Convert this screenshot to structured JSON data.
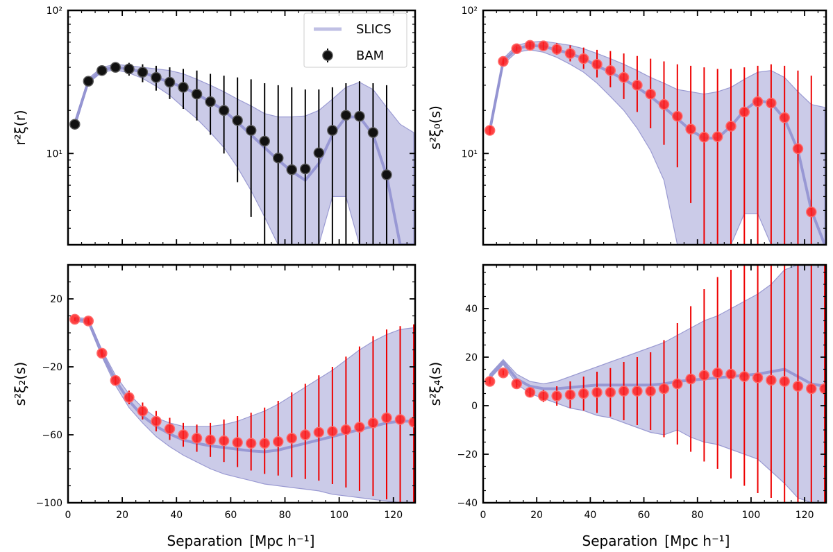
{
  "figure": {
    "xlabel_text": "Separation",
    "xlabel_unit": "[Mpc h⁻¹]"
  },
  "legend": {
    "slics": "SLICS",
    "bam": "BAM"
  },
  "colors": {
    "band": "#c5c5e6",
    "band_edge": "#9a9ad2",
    "median_line": "#8f8fd0",
    "bam_real": "#111111",
    "bam_red": "#ff1e1e",
    "err_red": "#ee0000",
    "err_black": "#000000"
  },
  "chart_data": [
    {
      "id": "real",
      "type": "scatter",
      "yscale": "log",
      "ylabel": "r²ξ(r)",
      "xlim": [
        0,
        128
      ],
      "ylim": [
        2.3,
        100
      ],
      "x_ticks": [
        0,
        20,
        40,
        60,
        80,
        100,
        120
      ],
      "y_ticks": [
        {
          "value": 10,
          "label": "10¹"
        },
        {
          "value": 100,
          "label": "10²"
        }
      ],
      "show_x_ticklabels": false,
      "point_style": "black",
      "x": [
        2.5,
        7.5,
        12.5,
        17.5,
        22.5,
        27.5,
        32.5,
        37.5,
        42.5,
        47.5,
        52.5,
        57.5,
        62.5,
        67.5,
        72.5,
        77.5,
        82.5,
        87.5,
        92.5,
        97.5,
        102.5,
        107.5,
        112.5,
        117.5
      ],
      "y": [
        16,
        32,
        38,
        40,
        39,
        37,
        34,
        31.5,
        29,
        26,
        23,
        20,
        17,
        14.5,
        12.2,
        9.3,
        7.7,
        7.8,
        10.1,
        14.5,
        18.5,
        18.2,
        14,
        7.1
      ],
      "err_low": [
        15,
        30,
        36,
        37,
        35,
        31.5,
        27.5,
        24,
        20.5,
        17,
        13.5,
        10,
        6.3,
        3.6,
        2.3,
        2.3,
        2.3,
        2.3,
        2.3,
        2.3,
        2.3,
        2.3,
        2.3,
        2.3
      ],
      "err_high": [
        17,
        34,
        40,
        43,
        43,
        42,
        41,
        40,
        39,
        38,
        36,
        35,
        34,
        33,
        31,
        30,
        29,
        28,
        28,
        29,
        31,
        32,
        31,
        30
      ],
      "band": {
        "x": [
          2.5,
          7.5,
          12.5,
          17.5,
          22.5,
          27.5,
          32.5,
          37.5,
          42.5,
          47.5,
          52.5,
          57.5,
          62.5,
          67.5,
          72.5,
          77.5,
          82.5,
          87.5,
          92.5,
          97.5,
          102.5,
          107.5,
          112.5,
          117.5,
          122.5,
          127.5
        ],
        "upper": [
          17,
          33.5,
          40,
          42,
          41,
          40,
          39,
          38,
          36,
          33,
          30,
          27,
          24,
          21.5,
          19,
          18,
          18,
          18.3,
          20,
          24,
          29,
          31.5,
          28,
          21,
          16,
          14
        ],
        "lower": [
          15,
          31,
          37,
          38.5,
          36.5,
          33.5,
          29.5,
          25.5,
          21,
          17.5,
          14,
          11,
          8,
          5.5,
          3.6,
          2.3,
          2.3,
          2.3,
          2.3,
          5,
          5,
          2.3,
          2.3,
          2.3,
          2.3,
          2.3
        ],
        "median": [
          16,
          32,
          38.5,
          40,
          39,
          37,
          34,
          31.5,
          29,
          26,
          23,
          20,
          16.5,
          13.5,
          11,
          9,
          7.5,
          6.5,
          8.5,
          13.5,
          18,
          18,
          13.5,
          7,
          2.3,
          2.3
        ]
      }
    },
    {
      "id": "monopole",
      "type": "scatter",
      "yscale": "log",
      "ylabel": "s²ξ₀(s)",
      "xlim": [
        0,
        128
      ],
      "ylim": [
        2.3,
        100
      ],
      "x_ticks": [
        0,
        20,
        40,
        60,
        80,
        100,
        120
      ],
      "y_ticks": [
        {
          "value": 10,
          "label": "10¹"
        },
        {
          "value": 100,
          "label": "10²"
        }
      ],
      "show_x_ticklabels": false,
      "point_style": "red",
      "x": [
        2.5,
        7.5,
        12.5,
        17.5,
        22.5,
        27.5,
        32.5,
        37.5,
        42.5,
        47.5,
        52.5,
        57.5,
        62.5,
        67.5,
        72.5,
        77.5,
        82.5,
        87.5,
        92.5,
        97.5,
        102.5,
        107.5,
        112.5,
        117.5,
        122.5
      ],
      "y": [
        14.5,
        44,
        54,
        57,
        56.5,
        53.5,
        50,
        46,
        42,
        38,
        34,
        30,
        26,
        22,
        18.2,
        14.8,
        13,
        13.1,
        15.5,
        19.5,
        23,
        22.5,
        17.8,
        10.8,
        3.9
      ],
      "err_low": [
        13.5,
        42,
        52,
        54,
        53,
        49,
        44,
        39,
        34,
        29,
        24,
        19.5,
        15,
        11.5,
        8,
        4.5,
        2.3,
        2.3,
        2.3,
        2.3,
        2.3,
        2.3,
        2.3,
        2.3,
        2.3
      ],
      "err_high": [
        15.5,
        46,
        56,
        60,
        60,
        59,
        57,
        55,
        53,
        52,
        50,
        48,
        46,
        44,
        42,
        41,
        40,
        39,
        39,
        40,
        41,
        42,
        41,
        38,
        35
      ],
      "band": {
        "x": [
          2.5,
          7.5,
          12.5,
          17.5,
          22.5,
          27.5,
          32.5,
          37.5,
          42.5,
          47.5,
          52.5,
          57.5,
          62.5,
          67.5,
          72.5,
          77.5,
          82.5,
          87.5,
          92.5,
          97.5,
          102.5,
          107.5,
          112.5,
          117.5,
          122.5,
          127.5
        ],
        "upper": [
          15.5,
          46,
          57,
          60,
          61,
          59,
          57,
          54,
          50,
          46,
          42,
          38,
          34,
          31,
          28,
          27,
          26,
          27,
          29,
          33,
          37,
          38,
          34,
          27,
          22,
          21
        ],
        "lower": [
          13.5,
          42,
          51,
          53,
          51,
          47,
          42,
          37,
          31,
          25,
          20,
          15,
          10.5,
          6.5,
          2.3,
          2.3,
          2.3,
          2.3,
          2.3,
          3.8,
          3.8,
          2.3,
          2.3,
          2.3,
          2.3,
          2.3
        ],
        "median": [
          14.5,
          44,
          54,
          57,
          56,
          53,
          50,
          46,
          41,
          37,
          33,
          29,
          25,
          21,
          17.5,
          14.5,
          12.8,
          12.8,
          15.5,
          20,
          23.5,
          22.5,
          17.5,
          10.5,
          4,
          2.3
        ]
      }
    },
    {
      "id": "quadrupole",
      "type": "scatter",
      "yscale": "linear",
      "ylabel": "s²ξ₂(s)",
      "xlim": [
        0,
        128
      ],
      "ylim": [
        -100,
        40
      ],
      "x_ticks": [
        0,
        20,
        40,
        60,
        80,
        100,
        120
      ],
      "y_ticks": [
        {
          "value": -100,
          "label": "−100"
        },
        {
          "value": -60,
          "label": "−60"
        },
        {
          "value": -20,
          "label": "−20"
        },
        {
          "value": 20,
          "label": "20"
        }
      ],
      "show_x_ticklabels": true,
      "xlabel": "Separation",
      "point_style": "red",
      "x": [
        2.5,
        7.5,
        12.5,
        17.5,
        22.5,
        27.5,
        32.5,
        37.5,
        42.5,
        47.5,
        52.5,
        57.5,
        62.5,
        67.5,
        72.5,
        77.5,
        82.5,
        87.5,
        92.5,
        97.5,
        102.5,
        107.5,
        112.5,
        117.5,
        122.5,
        127.5
      ],
      "y": [
        8,
        7,
        -12,
        -28,
        -38,
        -46,
        -52,
        -56.5,
        -60,
        -62,
        -63,
        -63.5,
        -64.5,
        -65,
        -65,
        -64,
        -62,
        -60,
        -58.5,
        -58,
        -57,
        -55.5,
        -53,
        -50,
        -51,
        -52.5
      ],
      "err_low": [
        7,
        5.5,
        -14,
        -31,
        -42,
        -51,
        -58,
        -63,
        -67,
        -70,
        -73,
        -76,
        -79,
        -81,
        -83,
        -84,
        -85,
        -86,
        -87,
        -89,
        -91,
        -93,
        -96,
        -98,
        -100,
        -100
      ],
      "err_high": [
        9,
        8.5,
        -10,
        -25,
        -34,
        -41,
        -46,
        -50,
        -53,
        -54,
        -53,
        -51,
        -49,
        -47,
        -44,
        -40,
        -35,
        -30,
        -25,
        -20,
        -14,
        -8,
        -2,
        2,
        4,
        5
      ],
      "band": {
        "x": [
          2.5,
          7.5,
          12.5,
          17.5,
          22.5,
          27.5,
          32.5,
          37.5,
          42.5,
          47.5,
          52.5,
          57.5,
          62.5,
          67.5,
          72.5,
          77.5,
          82.5,
          87.5,
          92.5,
          97.5,
          102.5,
          107.5,
          112.5,
          117.5,
          122.5,
          127.5
        ],
        "upper": [
          9,
          8.5,
          -10,
          -25,
          -36,
          -44,
          -50,
          -53,
          -55,
          -55,
          -55,
          -54,
          -52,
          -49,
          -46,
          -42,
          -37,
          -32,
          -27,
          -22,
          -16,
          -10,
          -5,
          -1,
          2,
          3
        ],
        "lower": [
          7,
          5.5,
          -14,
          -31,
          -44,
          -53,
          -61,
          -67,
          -72,
          -76,
          -80,
          -83,
          -85,
          -87,
          -89,
          -90,
          -91,
          -92,
          -93,
          -95,
          -96,
          -97,
          -98,
          -99,
          -100,
          -100
        ],
        "median": [
          8,
          7,
          -12,
          -28,
          -40,
          -49,
          -55,
          -59.5,
          -63,
          -65,
          -66.5,
          -67.5,
          -68.5,
          -69.5,
          -70,
          -69,
          -67,
          -65,
          -63,
          -61,
          -59,
          -57,
          -55,
          -53,
          -52,
          -52
        ]
      }
    },
    {
      "id": "hexadecapole",
      "type": "scatter",
      "yscale": "linear",
      "ylabel": "s²ξ₄(s)",
      "xlim": [
        0,
        128
      ],
      "ylim": [
        -40,
        58
      ],
      "x_ticks": [
        0,
        20,
        40,
        60,
        80,
        100,
        120
      ],
      "y_ticks": [
        {
          "value": -40,
          "label": "−40"
        },
        {
          "value": -20,
          "label": "−20"
        },
        {
          "value": 0,
          "label": "0"
        },
        {
          "value": 20,
          "label": "20"
        },
        {
          "value": 40,
          "label": "40"
        }
      ],
      "show_x_ticklabels": true,
      "xlabel": "Separation",
      "point_style": "red",
      "x": [
        2.5,
        7.5,
        12.5,
        17.5,
        22.5,
        27.5,
        32.5,
        37.5,
        42.5,
        47.5,
        52.5,
        57.5,
        62.5,
        67.5,
        72.5,
        77.5,
        82.5,
        87.5,
        92.5,
        97.5,
        102.5,
        107.5,
        112.5,
        117.5,
        122.5,
        127.5
      ],
      "y": [
        10,
        13.5,
        9,
        5.5,
        4,
        4,
        4.5,
        5,
        5.5,
        5.5,
        6,
        6,
        6,
        7,
        9,
        11,
        12.5,
        13.5,
        13,
        12,
        11.5,
        10.5,
        10,
        8,
        7,
        7
      ],
      "err_low": [
        9,
        12.5,
        7.5,
        3.5,
        1.5,
        0,
        -1,
        -2,
        -3,
        -4.5,
        -6,
        -8,
        -10,
        -13,
        -16,
        -19,
        -23,
        -26,
        -30,
        -33,
        -36,
        -38,
        -40,
        -40,
        -40,
        -40
      ],
      "err_high": [
        11,
        14.5,
        10.5,
        7.5,
        6.5,
        8,
        10,
        12,
        14,
        15.5,
        18,
        20,
        22,
        27,
        34,
        41,
        48,
        53,
        56,
        58,
        58,
        58,
        58,
        58,
        58,
        58
      ],
      "band": {
        "x": [
          2.5,
          7.5,
          12.5,
          17.5,
          22.5,
          27.5,
          32.5,
          37.5,
          42.5,
          47.5,
          52.5,
          57.5,
          62.5,
          67.5,
          72.5,
          77.5,
          82.5,
          87.5,
          92.5,
          97.5,
          102.5,
          107.5,
          112.5,
          117.5,
          122.5,
          127.5
        ],
        "upper": [
          13,
          19,
          13,
          10,
          9,
          10,
          12,
          14,
          16,
          18,
          20,
          22,
          24,
          26,
          29,
          32,
          35,
          37,
          40,
          43,
          46,
          50,
          56,
          58,
          58,
          58
        ],
        "lower": [
          11,
          17,
          9,
          5,
          3,
          1,
          -1,
          -2,
          -4,
          -5,
          -7,
          -9,
          -11,
          -12,
          -10,
          -13,
          -15,
          -16,
          -18,
          -20,
          -22,
          -27,
          -32,
          -38,
          -40,
          -40
        ],
        "median": [
          12,
          18,
          11,
          8,
          7,
          7,
          7.5,
          8,
          8.5,
          8.5,
          8.5,
          8.5,
          8.5,
          9,
          10,
          10.5,
          11,
          11.5,
          12,
          12.5,
          13,
          14,
          15,
          12,
          9,
          8
        ]
      }
    }
  ]
}
